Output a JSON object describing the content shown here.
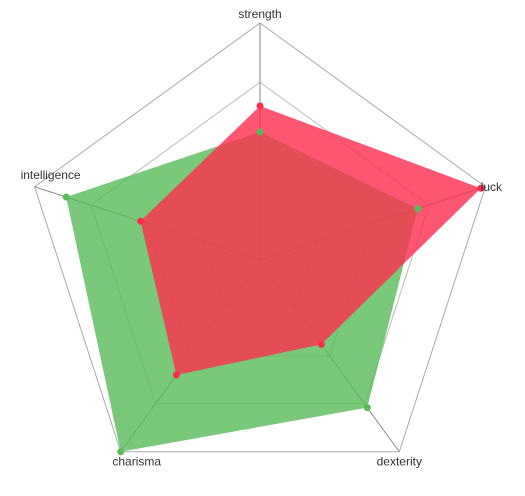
{
  "chart_data": {
    "type": "radar",
    "axes": [
      "strength",
      "luck",
      "dexterity",
      "charisma",
      "intelligence"
    ],
    "max": 100,
    "grid_levels": 4,
    "grid": true,
    "series": [
      {
        "color": "#59ba59",
        "values": [
          54,
          70,
          77,
          100,
          86
        ]
      },
      {
        "color": "#ff2d4d",
        "values": [
          65,
          98,
          44,
          60,
          53
        ]
      }
    ]
  }
}
